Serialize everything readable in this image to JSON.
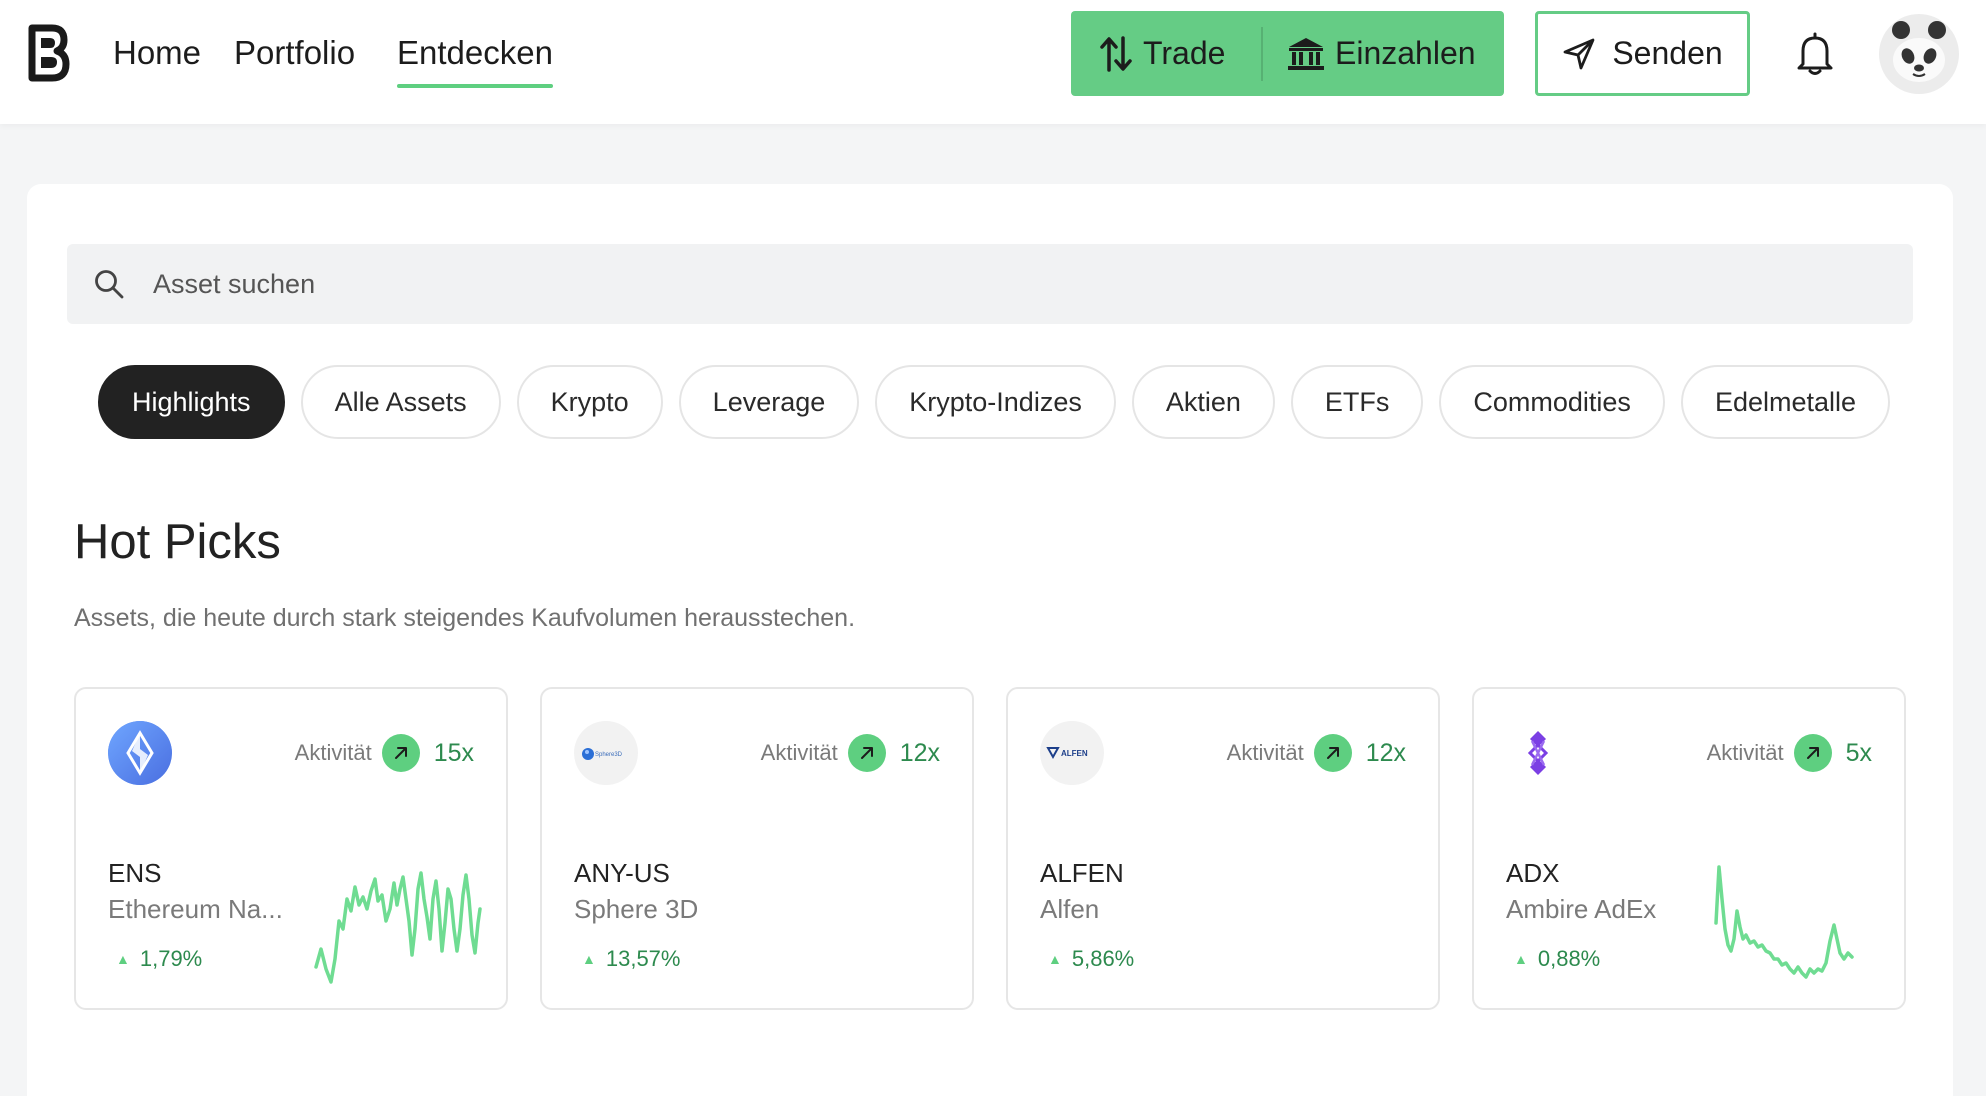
{
  "nav": {
    "home": "Home",
    "portfolio": "Portfolio",
    "discover": "Entdecken",
    "trade": "Trade",
    "deposit": "Einzahlen",
    "send": "Senden"
  },
  "search": {
    "placeholder": "Asset suchen"
  },
  "filters": [
    "Highlights",
    "Alle Assets",
    "Krypto",
    "Leverage",
    "Krypto-Indizes",
    "Aktien",
    "ETFs",
    "Commodities",
    "Edelmetalle"
  ],
  "active_filter": "Highlights",
  "section": {
    "title": "Hot Picks",
    "subtitle": "Assets, die heute durch stark steigendes Kaufvolumen herausstechen."
  },
  "picks": [
    {
      "symbol": "ENS",
      "name": "Ethereum Na...",
      "activity_label": "Aktivität",
      "multiplier": "15x",
      "change": "1,79%",
      "logo_icon": "ens-logo-icon",
      "has_sparkline": true
    },
    {
      "symbol": "ANY-US",
      "name": "Sphere 3D",
      "activity_label": "Aktivität",
      "multiplier": "12x",
      "change": "13,57%",
      "logo_icon": "sphere3d-logo-icon",
      "logo_text": "Sphere3D",
      "has_sparkline": false
    },
    {
      "symbol": "ALFEN",
      "name": "Alfen",
      "activity_label": "Aktivität",
      "multiplier": "12x",
      "change": "5,86%",
      "logo_icon": "alfen-logo-icon",
      "logo_text": "ALFEN",
      "has_sparkline": false
    },
    {
      "symbol": "ADX",
      "name": "Ambire AdEx",
      "activity_label": "Aktivität",
      "multiplier": "5x",
      "change": "0,88%",
      "logo_icon": "adx-logo-icon",
      "has_sparkline": true
    }
  ],
  "colors": {
    "accent": "#65cc85",
    "positive": "#2d8a4e",
    "chip_active": "#222222"
  }
}
